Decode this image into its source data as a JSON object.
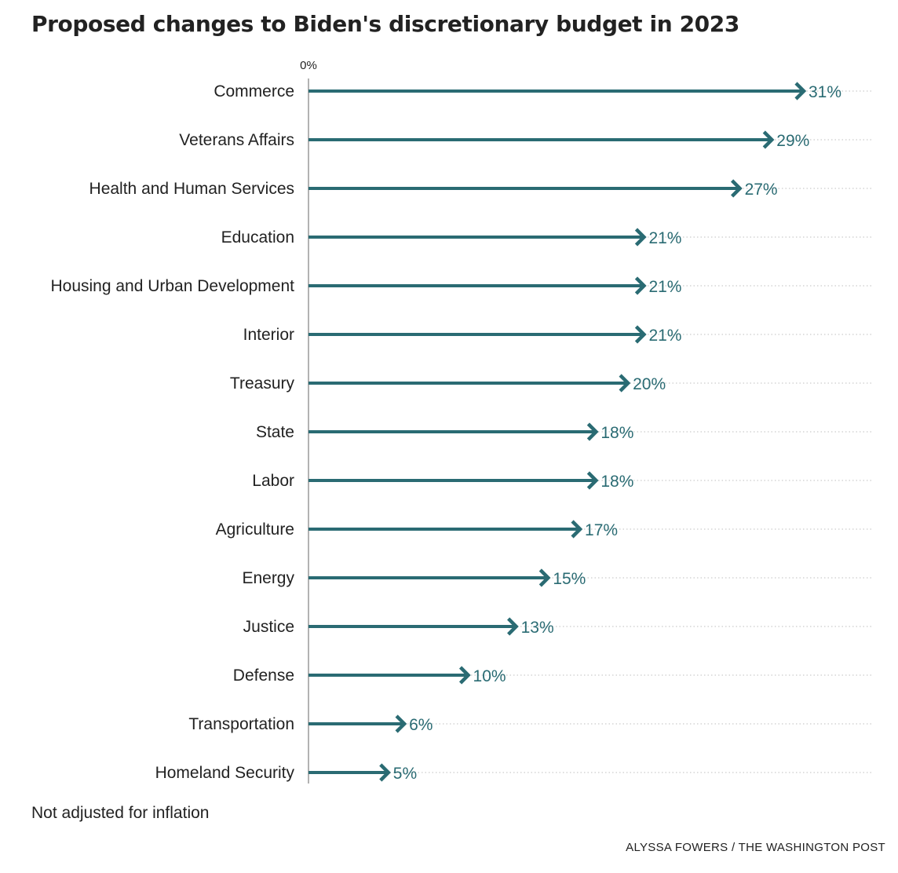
{
  "title": "Proposed changes to Biden's discretionary budget in 2023",
  "note": "Not adjusted for inflation",
  "credit": "ALYSSA FOWERS / THE WASHINGTON POST",
  "colors": {
    "arrow": "#2a6b73",
    "label": "#2a6b73",
    "text": "#222222",
    "axis": "#999999",
    "gridline": "#cccccc"
  },
  "chart_data": {
    "type": "bar",
    "variant": "horizontal-arrow",
    "title": "Proposed changes to Biden's discretionary budget in 2023",
    "xlabel": "",
    "ylabel": "",
    "x_tick_label": "0%",
    "unit": "%",
    "categories": [
      "Commerce",
      "Veterans Affairs",
      "Health and Human Services",
      "Education",
      "Housing and Urban Development",
      "Interior",
      "Treasury",
      "State",
      "Labor",
      "Agriculture",
      "Energy",
      "Justice",
      "Defense",
      "Transportation",
      "Homeland Security"
    ],
    "values": [
      31,
      29,
      27,
      21,
      21,
      21,
      20,
      18,
      18,
      17,
      15,
      13,
      10,
      6,
      5
    ],
    "value_labels": [
      "31%",
      "29%",
      "27%",
      "21%",
      "21%",
      "21%",
      "20%",
      "18%",
      "18%",
      "17%",
      "15%",
      "13%",
      "10%",
      "6%",
      "5%"
    ],
    "xlim": [
      0,
      31
    ],
    "grid": "dotted horizontal row lines",
    "legend": "none"
  }
}
